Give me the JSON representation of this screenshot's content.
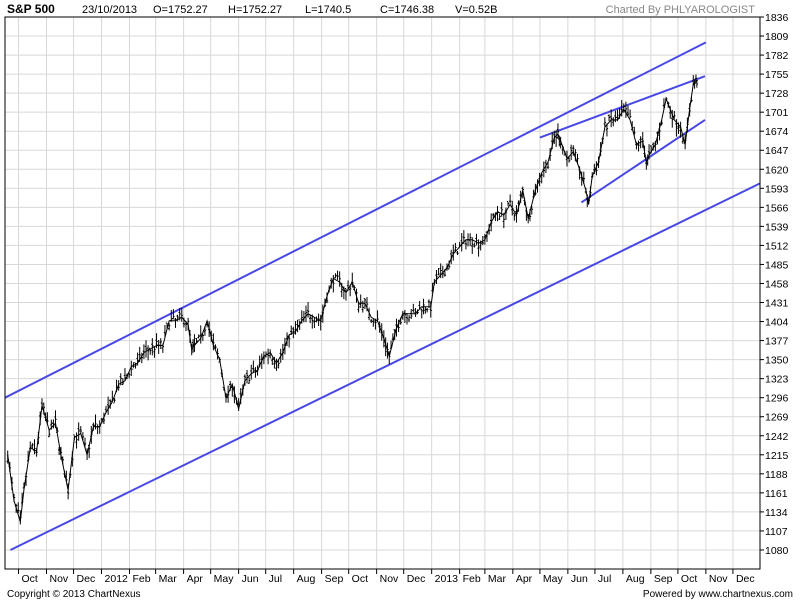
{
  "header": {
    "symbol": "S&P 500",
    "date": "23/10/2013",
    "open": "O=1752.27",
    "high": "H=1752.27",
    "low": "L=1740.5",
    "close": "C=1746.38",
    "volume": "V=0.52B",
    "credit": "Charted By PHLYAROLOGIST"
  },
  "footer": {
    "copyright": "Copyright © 2013 ChartNexus",
    "powered": "Powered by www.chartnexus.com"
  },
  "colors": {
    "frame": "#000000",
    "grid": "#d8d8d8",
    "price": "#000000",
    "trendline": "#4848e6",
    "axis_bg": "#ffffff",
    "credit_text": "#888888"
  },
  "chart_data": {
    "type": "line",
    "title": "S&P 500",
    "x_range": [
      "2011-09-16",
      "2013-12-31"
    ],
    "ylim": [
      1053,
      1836
    ],
    "grid": true,
    "y_ticks": [
      1836,
      1809,
      1782,
      1755,
      1728,
      1701,
      1674,
      1647,
      1620,
      1593,
      1566,
      1539,
      1512,
      1485,
      1458,
      1431,
      1404,
      1377,
      1350,
      1323,
      1296,
      1269,
      1242,
      1215,
      1188,
      1161,
      1134,
      1107,
      1080
    ],
    "x_ticks": [
      {
        "label": "Oct",
        "date": "2011-10-01"
      },
      {
        "label": "Nov",
        "date": "2011-11-01"
      },
      {
        "label": "Dec",
        "date": "2011-12-01"
      },
      {
        "label": "2012",
        "date": "2012-01-01"
      },
      {
        "label": "Feb",
        "date": "2012-02-01"
      },
      {
        "label": "Mar",
        "date": "2012-03-01"
      },
      {
        "label": "Apr",
        "date": "2012-04-01"
      },
      {
        "label": "May",
        "date": "2012-05-01"
      },
      {
        "label": "Jun",
        "date": "2012-06-01"
      },
      {
        "label": "Jul",
        "date": "2012-07-01"
      },
      {
        "label": "Aug",
        "date": "2012-08-01"
      },
      {
        "label": "Sep",
        "date": "2012-09-01"
      },
      {
        "label": "Oct",
        "date": "2012-10-01"
      },
      {
        "label": "Nov",
        "date": "2012-11-01"
      },
      {
        "label": "Dec",
        "date": "2012-12-01"
      },
      {
        "label": "2013",
        "date": "2013-01-01"
      },
      {
        "label": "Feb",
        "date": "2013-02-01"
      },
      {
        "label": "Mar",
        "date": "2013-03-01"
      },
      {
        "label": "Apr",
        "date": "2013-04-01"
      },
      {
        "label": "May",
        "date": "2013-05-01"
      },
      {
        "label": "Jun",
        "date": "2013-06-01"
      },
      {
        "label": "Jul",
        "date": "2013-07-01"
      },
      {
        "label": "Aug",
        "date": "2013-08-01"
      },
      {
        "label": "Sep",
        "date": "2013-09-01"
      },
      {
        "label": "Oct",
        "date": "2013-10-01"
      },
      {
        "label": "Nov",
        "date": "2013-11-01"
      },
      {
        "label": "Dec",
        "date": "2013-12-01"
      }
    ],
    "price_series": {
      "dates": [
        "2011-09-19",
        "2011-09-26",
        "2011-10-03",
        "2011-10-07",
        "2011-10-14",
        "2011-10-21",
        "2011-10-27",
        "2011-11-04",
        "2011-11-11",
        "2011-11-17",
        "2011-11-25",
        "2011-12-02",
        "2011-12-09",
        "2011-12-16",
        "2011-12-23",
        "2011-12-30",
        "2012-01-06",
        "2012-01-13",
        "2012-01-20",
        "2012-01-27",
        "2012-02-03",
        "2012-02-10",
        "2012-02-17",
        "2012-02-24",
        "2012-03-02",
        "2012-03-09",
        "2012-03-16",
        "2012-03-23",
        "2012-03-30",
        "2012-04-06",
        "2012-04-10",
        "2012-04-13",
        "2012-04-20",
        "2012-04-27",
        "2012-05-04",
        "2012-05-11",
        "2012-05-18",
        "2012-05-25",
        "2012-06-01",
        "2012-06-08",
        "2012-06-15",
        "2012-06-22",
        "2012-06-29",
        "2012-07-06",
        "2012-07-13",
        "2012-07-20",
        "2012-07-27",
        "2012-08-03",
        "2012-08-10",
        "2012-08-17",
        "2012-08-24",
        "2012-08-31",
        "2012-09-07",
        "2012-09-14",
        "2012-09-21",
        "2012-09-28",
        "2012-10-05",
        "2012-10-12",
        "2012-10-19",
        "2012-10-26",
        "2012-11-02",
        "2012-11-09",
        "2012-11-15",
        "2012-11-23",
        "2012-11-30",
        "2012-12-07",
        "2012-12-14",
        "2012-12-21",
        "2012-12-31",
        "2013-01-04",
        "2013-01-11",
        "2013-01-18",
        "2013-01-25",
        "2013-02-01",
        "2013-02-08",
        "2013-02-15",
        "2013-02-22",
        "2013-03-01",
        "2013-03-08",
        "2013-03-15",
        "2013-03-22",
        "2013-03-29",
        "2013-04-05",
        "2013-04-12",
        "2013-04-18",
        "2013-04-26",
        "2013-05-03",
        "2013-05-10",
        "2013-05-17",
        "2013-05-21",
        "2013-05-24",
        "2013-05-31",
        "2013-06-07",
        "2013-06-14",
        "2013-06-21",
        "2013-06-24",
        "2013-06-28",
        "2013-07-05",
        "2013-07-12",
        "2013-07-19",
        "2013-07-26",
        "2013-08-02",
        "2013-08-09",
        "2013-08-16",
        "2013-08-23",
        "2013-08-27",
        "2013-08-30",
        "2013-09-06",
        "2013-09-13",
        "2013-09-18",
        "2013-09-27",
        "2013-10-04",
        "2013-10-09",
        "2013-10-14",
        "2013-10-18",
        "2013-10-21",
        "2013-10-23"
      ],
      "close": [
        1215,
        1150,
        1120,
        1165,
        1225,
        1220,
        1285,
        1250,
        1260,
        1215,
        1165,
        1240,
        1245,
        1215,
        1255,
        1255,
        1275,
        1290,
        1315,
        1320,
        1340,
        1345,
        1360,
        1365,
        1370,
        1370,
        1405,
        1405,
        1410,
        1400,
        1365,
        1370,
        1380,
        1405,
        1370,
        1350,
        1295,
        1315,
        1280,
        1320,
        1330,
        1335,
        1355,
        1360,
        1345,
        1360,
        1385,
        1390,
        1405,
        1415,
        1410,
        1405,
        1440,
        1465,
        1460,
        1445,
        1460,
        1430,
        1430,
        1410,
        1405,
        1380,
        1355,
        1395,
        1415,
        1415,
        1415,
        1425,
        1425,
        1460,
        1470,
        1480,
        1500,
        1510,
        1520,
        1520,
        1515,
        1520,
        1545,
        1560,
        1555,
        1570,
        1555,
        1590,
        1550,
        1590,
        1615,
        1630,
        1665,
        1670,
        1660,
        1635,
        1645,
        1620,
        1590,
        1570,
        1610,
        1630,
        1680,
        1690,
        1690,
        1705,
        1690,
        1655,
        1660,
        1630,
        1640,
        1655,
        1690,
        1720,
        1690,
        1680,
        1655,
        1705,
        1740,
        1745,
        1746.38
      ]
    },
    "trendlines": [
      {
        "from": {
          "date": "2011-09-16",
          "value": 1296
        },
        "to": {
          "date": "2013-11-01",
          "value": 1800
        }
      },
      {
        "from": {
          "date": "2011-09-22",
          "value": 1080
        },
        "to": {
          "date": "2013-12-31",
          "value": 1600
        }
      },
      {
        "from": {
          "date": "2013-05-01",
          "value": 1665
        },
        "to": {
          "date": "2013-10-31",
          "value": 1752
        }
      },
      {
        "from": {
          "date": "2013-06-16",
          "value": 1573
        },
        "to": {
          "date": "2013-10-31",
          "value": 1690
        }
      }
    ]
  }
}
